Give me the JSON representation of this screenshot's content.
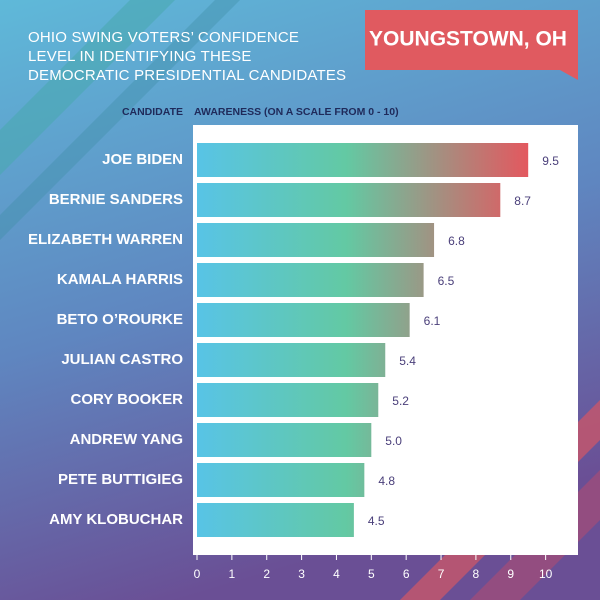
{
  "chart_data": {
    "type": "bar",
    "orientation": "horizontal",
    "title": "OHIO SWING VOTERS’ CONFIDENCE LEVEL IN IDENTIFYING THESE DEMOCRATIC PRESIDENTIAL CANDIDATES",
    "badge": "YOUNGSTOWN, OH",
    "category_label": "CANDIDATE",
    "value_label": "AWARENESS (ON A SCALE FROM 0 - 10)",
    "categories": [
      "JOE BIDEN",
      "BERNIE SANDERS",
      "ELIZABETH WARREN",
      "KAMALA HARRIS",
      "BETO O’ROURKE",
      "JULIAN CASTRO",
      "CORY BOOKER",
      "ANDREW YANG",
      "PETE BUTTIGIEG",
      "AMY KLOBUCHAR"
    ],
    "values": [
      9.5,
      8.7,
      6.8,
      6.5,
      6.1,
      5.4,
      5.2,
      5.0,
      4.8,
      4.5
    ],
    "value_labels": [
      "9.5",
      "8.7",
      "6.8",
      "6.5",
      "6.1",
      "5.4",
      "5.2",
      "5.0",
      "4.8",
      "4.5"
    ],
    "gradient": [
      "#58c4e6",
      "#63c9a3",
      "#e3585f"
    ],
    "xlim": [
      0,
      10.9
    ],
    "xticks": [
      0,
      1,
      2,
      3,
      4,
      5,
      6,
      7,
      8,
      9,
      10
    ]
  }
}
